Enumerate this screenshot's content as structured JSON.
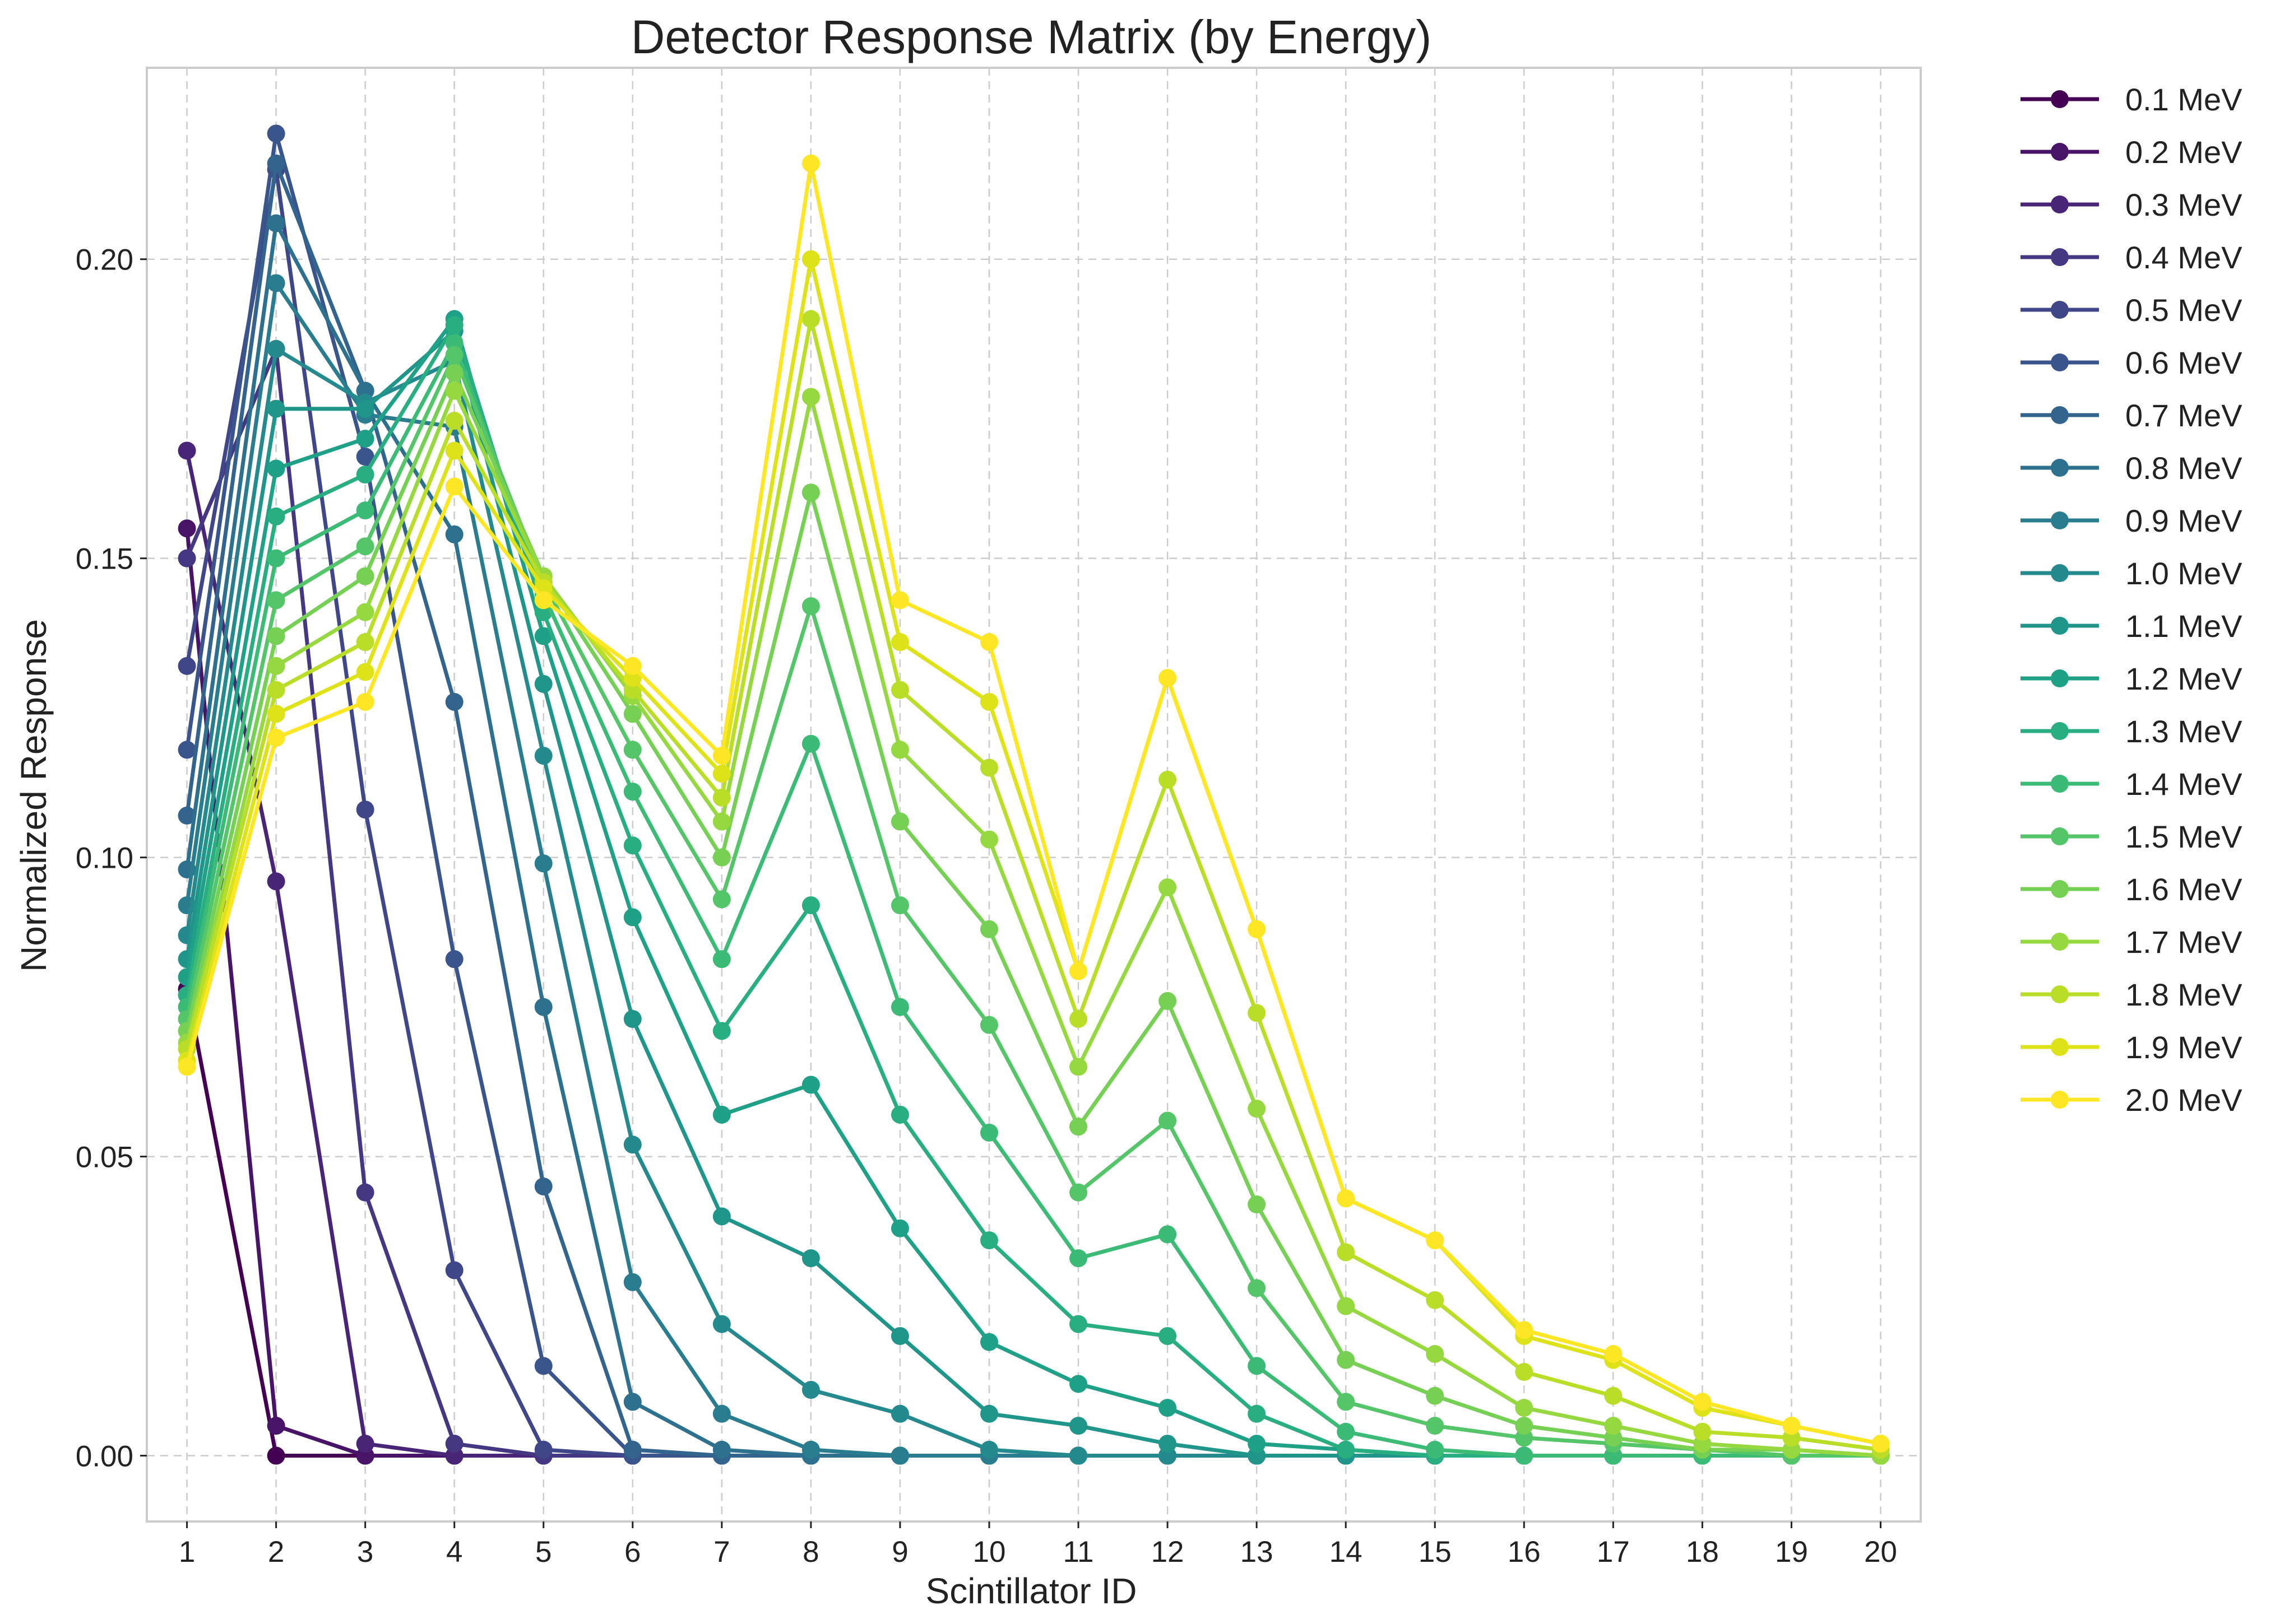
{
  "chart_data": {
    "type": "line",
    "title": "Detector Response Matrix (by Energy)",
    "xlabel": "Scintillator ID",
    "ylabel": "Normalized Response",
    "xlim": [
      0.55,
      20.45
    ],
    "ylim": [
      -0.011,
      0.232
    ],
    "x": [
      1,
      2,
      3,
      4,
      5,
      6,
      7,
      8,
      9,
      10,
      11,
      12,
      13,
      14,
      15,
      16,
      17,
      18,
      19,
      20
    ],
    "x_tick_labels": [
      "1",
      "2",
      "3",
      "4",
      "5",
      "6",
      "7",
      "8",
      "9",
      "10",
      "11",
      "12",
      "13",
      "14",
      "15",
      "16",
      "17",
      "18",
      "19",
      "20"
    ],
    "y_ticks": [
      0.0,
      0.05,
      0.1,
      0.15,
      0.2
    ],
    "y_tick_labels": [
      "0.00",
      "0.05",
      "0.10",
      "0.15",
      "0.20"
    ],
    "grid": true,
    "legend_position": "outside-right",
    "colormap": "viridis",
    "series": [
      {
        "name": "0.1 MeV",
        "color": "#440154",
        "values": [
          0.078,
          0.0,
          0.0,
          0.0,
          0.0,
          0.0,
          0.0,
          0.0,
          0.0,
          0.0,
          0.0,
          0.0,
          0.0,
          0.0,
          0.0,
          0.0,
          0.0,
          0.0,
          0.0,
          0.0
        ]
      },
      {
        "name": "0.2 MeV",
        "color": "#481467",
        "values": [
          0.155,
          0.005,
          0.0,
          0.0,
          0.0,
          0.0,
          0.0,
          0.0,
          0.0,
          0.0,
          0.0,
          0.0,
          0.0,
          0.0,
          0.0,
          0.0,
          0.0,
          0.0,
          0.0,
          0.0
        ]
      },
      {
        "name": "0.3 MeV",
        "color": "#482576",
        "values": [
          0.168,
          0.096,
          0.002,
          0.0,
          0.0,
          0.0,
          0.0,
          0.0,
          0.0,
          0.0,
          0.0,
          0.0,
          0.0,
          0.0,
          0.0,
          0.0,
          0.0,
          0.0,
          0.0,
          0.0
        ]
      },
      {
        "name": "0.4 MeV",
        "color": "#453781",
        "values": [
          0.15,
          0.185,
          0.044,
          0.002,
          0.0,
          0.0,
          0.0,
          0.0,
          0.0,
          0.0,
          0.0,
          0.0,
          0.0,
          0.0,
          0.0,
          0.0,
          0.0,
          0.0,
          0.0,
          0.0
        ]
      },
      {
        "name": "0.5 MeV",
        "color": "#3f4788",
        "values": [
          0.132,
          0.215,
          0.108,
          0.031,
          0.001,
          0.0,
          0.0,
          0.0,
          0.0,
          0.0,
          0.0,
          0.0,
          0.0,
          0.0,
          0.0,
          0.0,
          0.0,
          0.0,
          0.0,
          0.0
        ]
      },
      {
        "name": "0.6 MeV",
        "color": "#39558c",
        "values": [
          0.118,
          0.221,
          0.167,
          0.083,
          0.015,
          0.0,
          0.0,
          0.0,
          0.0,
          0.0,
          0.0,
          0.0,
          0.0,
          0.0,
          0.0,
          0.0,
          0.0,
          0.0,
          0.0,
          0.0
        ]
      },
      {
        "name": "0.7 MeV",
        "color": "#32648e",
        "values": [
          0.107,
          0.216,
          0.178,
          0.126,
          0.045,
          0.001,
          0.0,
          0.0,
          0.0,
          0.0,
          0.0,
          0.0,
          0.0,
          0.0,
          0.0,
          0.0,
          0.0,
          0.0,
          0.0,
          0.0
        ]
      },
      {
        "name": "0.8 MeV",
        "color": "#2d718e",
        "values": [
          0.098,
          0.206,
          0.178,
          0.154,
          0.075,
          0.009,
          0.001,
          0.0,
          0.0,
          0.0,
          0.0,
          0.0,
          0.0,
          0.0,
          0.0,
          0.0,
          0.0,
          0.0,
          0.0,
          0.0
        ]
      },
      {
        "name": "0.9 MeV",
        "color": "#297d8e",
        "values": [
          0.092,
          0.196,
          0.174,
          0.172,
          0.099,
          0.029,
          0.007,
          0.001,
          0.0,
          0.0,
          0.0,
          0.0,
          0.0,
          0.0,
          0.0,
          0.0,
          0.0,
          0.0,
          0.0,
          0.0
        ]
      },
      {
        "name": "1.0 MeV",
        "color": "#258a8d",
        "values": [
          0.087,
          0.185,
          0.176,
          0.183,
          0.117,
          0.052,
          0.022,
          0.011,
          0.007,
          0.001,
          0.0,
          0.0,
          0.0,
          0.0,
          0.0,
          0.0,
          0.0,
          0.0,
          0.0,
          0.0
        ]
      },
      {
        "name": "1.1 MeV",
        "color": "#20968b",
        "values": [
          0.083,
          0.175,
          0.175,
          0.188,
          0.129,
          0.073,
          0.04,
          0.033,
          0.02,
          0.007,
          0.005,
          0.002,
          0.0,
          0.0,
          0.0,
          0.0,
          0.0,
          0.0,
          0.0,
          0.0
        ]
      },
      {
        "name": "1.2 MeV",
        "color": "#1fa187",
        "values": [
          0.08,
          0.165,
          0.17,
          0.19,
          0.137,
          0.09,
          0.057,
          0.062,
          0.038,
          0.019,
          0.012,
          0.008,
          0.002,
          0.001,
          0.0,
          0.0,
          0.0,
          0.0,
          0.0,
          0.0
        ]
      },
      {
        "name": "1.3 MeV",
        "color": "#28ae80",
        "values": [
          0.077,
          0.157,
          0.164,
          0.189,
          0.141,
          0.102,
          0.071,
          0.092,
          0.057,
          0.036,
          0.022,
          0.02,
          0.007,
          0.001,
          0.0,
          0.0,
          0.0,
          0.0,
          0.0,
          0.0
        ]
      },
      {
        "name": "1.4 MeV",
        "color": "#3bbb75",
        "values": [
          0.075,
          0.15,
          0.158,
          0.186,
          0.144,
          0.111,
          0.083,
          0.119,
          0.075,
          0.054,
          0.033,
          0.037,
          0.015,
          0.004,
          0.001,
          0.0,
          0.0,
          0.0,
          0.0,
          0.0
        ]
      },
      {
        "name": "1.5 MeV",
        "color": "#54c568",
        "values": [
          0.073,
          0.143,
          0.152,
          0.184,
          0.146,
          0.118,
          0.093,
          0.142,
          0.092,
          0.072,
          0.044,
          0.056,
          0.028,
          0.009,
          0.005,
          0.003,
          0.002,
          0.001,
          0.0,
          0.0
        ]
      },
      {
        "name": "1.6 MeV",
        "color": "#75d054",
        "values": [
          0.071,
          0.137,
          0.147,
          0.181,
          0.147,
          0.124,
          0.1,
          0.161,
          0.106,
          0.088,
          0.055,
          0.076,
          0.042,
          0.016,
          0.01,
          0.005,
          0.003,
          0.001,
          0.001,
          0.0
        ]
      },
      {
        "name": "1.7 MeV",
        "color": "#95d840",
        "values": [
          0.069,
          0.132,
          0.141,
          0.178,
          0.147,
          0.127,
          0.106,
          0.177,
          0.118,
          0.103,
          0.065,
          0.095,
          0.058,
          0.025,
          0.017,
          0.008,
          0.005,
          0.002,
          0.001,
          0.0
        ]
      },
      {
        "name": "1.8 MeV",
        "color": "#bade28",
        "values": [
          0.068,
          0.128,
          0.136,
          0.173,
          0.146,
          0.128,
          0.11,
          0.19,
          0.128,
          0.115,
          0.073,
          0.113,
          0.074,
          0.034,
          0.026,
          0.014,
          0.01,
          0.004,
          0.003,
          0.001
        ]
      },
      {
        "name": "1.9 MeV",
        "color": "#dde318",
        "values": [
          0.066,
          0.124,
          0.131,
          0.168,
          0.145,
          0.13,
          0.114,
          0.2,
          0.136,
          0.126,
          0.081,
          0.13,
          0.088,
          0.043,
          0.036,
          0.02,
          0.016,
          0.008,
          0.005,
          0.002
        ]
      },
      {
        "name": "2.0 MeV",
        "color": "#fde725",
        "values": [
          0.065,
          0.12,
          0.126,
          0.162,
          0.143,
          0.132,
          0.117,
          0.216,
          0.143,
          0.136,
          0.081,
          0.13,
          0.088,
          0.043,
          0.036,
          0.021,
          0.017,
          0.009,
          0.005,
          0.002
        ]
      }
    ]
  }
}
